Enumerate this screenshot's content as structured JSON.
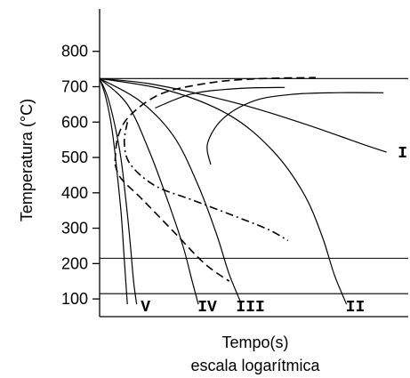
{
  "chart_data": {
    "type": "line",
    "title": "",
    "ylabel": "Temperatura (°C)",
    "xlabel_lines": [
      "Tempo(s)",
      "escala logarítmica"
    ],
    "ylim": [
      50,
      920
    ],
    "yticks": [
      100,
      200,
      300,
      400,
      500,
      600,
      700,
      800
    ],
    "reference_lines": [
      {
        "temperature": 723
      },
      {
        "temperature": 215
      },
      {
        "temperature": 115
      }
    ],
    "cooling_curves": [
      {
        "label": "I",
        "points": [
          [
            0.0,
            723
          ],
          [
            0.15,
            710
          ],
          [
            0.32,
            680
          ],
          [
            0.5,
            640
          ],
          [
            0.68,
            590
          ],
          [
            0.86,
            535
          ],
          [
            0.93,
            515
          ]
        ]
      },
      {
        "label": "II",
        "points": [
          [
            0.0,
            723
          ],
          [
            0.22,
            690
          ],
          [
            0.42,
            620
          ],
          [
            0.56,
            520
          ],
          [
            0.66,
            400
          ],
          [
            0.72,
            280
          ],
          [
            0.76,
            170
          ],
          [
            0.8,
            85
          ]
        ]
      },
      {
        "label": "III",
        "points": [
          [
            0.0,
            723
          ],
          [
            0.13,
            660
          ],
          [
            0.24,
            560
          ],
          [
            0.32,
            420
          ],
          [
            0.38,
            280
          ],
          [
            0.42,
            170
          ],
          [
            0.46,
            85
          ]
        ]
      },
      {
        "label": "IV",
        "points": [
          [
            0.0,
            723
          ],
          [
            0.09,
            650
          ],
          [
            0.16,
            520
          ],
          [
            0.22,
            380
          ],
          [
            0.27,
            250
          ],
          [
            0.3,
            150
          ],
          [
            0.32,
            85
          ]
        ]
      },
      {
        "label": "V",
        "points": [
          [
            0.0,
            723
          ],
          [
            0.03,
            660
          ],
          [
            0.065,
            520
          ],
          [
            0.085,
            380
          ],
          [
            0.1,
            250
          ],
          [
            0.11,
            150
          ],
          [
            0.12,
            85
          ]
        ]
      },
      {
        "label": "",
        "points": [
          [
            0.0,
            723
          ],
          [
            0.02,
            670
          ],
          [
            0.04,
            580
          ],
          [
            0.055,
            470
          ],
          [
            0.07,
            340
          ],
          [
            0.08,
            210
          ],
          [
            0.09,
            85
          ]
        ]
      }
    ],
    "transformation_curves": [
      {
        "style": "dashed",
        "points": [
          [
            0.05,
            490
          ],
          [
            0.06,
            560
          ],
          [
            0.1,
            620
          ],
          [
            0.2,
            680
          ],
          [
            0.35,
            710
          ],
          [
            0.5,
            722
          ],
          [
            0.7,
            726
          ]
        ]
      },
      {
        "style": "solid",
        "points": [
          [
            0.18,
            640
          ],
          [
            0.3,
            680
          ],
          [
            0.45,
            695
          ],
          [
            0.6,
            698
          ]
        ]
      },
      {
        "style": "solid",
        "points": [
          [
            0.36,
            480
          ],
          [
            0.35,
            540
          ],
          [
            0.4,
            610
          ],
          [
            0.5,
            660
          ],
          [
            0.62,
            678
          ],
          [
            0.76,
            683
          ],
          [
            0.92,
            683
          ]
        ]
      },
      {
        "style": "dashed",
        "points": [
          [
            0.05,
            480
          ],
          [
            0.07,
            440
          ],
          [
            0.14,
            380
          ],
          [
            0.24,
            290
          ],
          [
            0.34,
            200
          ],
          [
            0.42,
            150
          ]
        ]
      },
      {
        "style": "dash-dot",
        "points": [
          [
            0.09,
            600
          ],
          [
            0.08,
            540
          ],
          [
            0.1,
            480
          ],
          [
            0.18,
            420
          ],
          [
            0.3,
            380
          ],
          [
            0.45,
            330
          ],
          [
            0.55,
            295
          ],
          [
            0.61,
            265
          ]
        ]
      }
    ]
  }
}
